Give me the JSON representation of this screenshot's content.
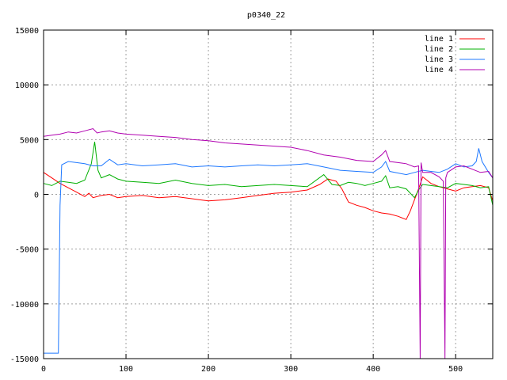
{
  "chart_data": {
    "type": "line",
    "title": "p0340_22",
    "xlabel": "",
    "ylabel": "",
    "xlim": [
      0,
      545
    ],
    "ylim": [
      -15000,
      15000
    ],
    "x_ticks": [
      0,
      100,
      200,
      300,
      400,
      500
    ],
    "y_ticks": [
      -15000,
      -10000,
      -5000,
      0,
      5000,
      10000,
      15000
    ],
    "grid": true,
    "legend_position": "top-right",
    "series": [
      {
        "name": "line 1",
        "color": "#ff0000",
        "points": [
          [
            0,
            2000
          ],
          [
            10,
            1500
          ],
          [
            20,
            1000
          ],
          [
            30,
            600
          ],
          [
            40,
            200
          ],
          [
            50,
            -200
          ],
          [
            55,
            100
          ],
          [
            60,
            -300
          ],
          [
            70,
            -100
          ],
          [
            80,
            0
          ],
          [
            90,
            -300
          ],
          [
            100,
            -200
          ],
          [
            120,
            -100
          ],
          [
            140,
            -300
          ],
          [
            160,
            -200
          ],
          [
            180,
            -400
          ],
          [
            200,
            -600
          ],
          [
            220,
            -500
          ],
          [
            240,
            -300
          ],
          [
            260,
            -100
          ],
          [
            280,
            100
          ],
          [
            300,
            200
          ],
          [
            320,
            400
          ],
          [
            335,
            900
          ],
          [
            345,
            1400
          ],
          [
            355,
            1200
          ],
          [
            362,
            500
          ],
          [
            370,
            -700
          ],
          [
            380,
            -1000
          ],
          [
            390,
            -1200
          ],
          [
            400,
            -1500
          ],
          [
            410,
            -1700
          ],
          [
            420,
            -1800
          ],
          [
            430,
            -2000
          ],
          [
            440,
            -2300
          ],
          [
            445,
            -1500
          ],
          [
            450,
            -500
          ],
          [
            455,
            500
          ],
          [
            460,
            1600
          ],
          [
            465,
            1300
          ],
          [
            470,
            1000
          ],
          [
            480,
            700
          ],
          [
            490,
            500
          ],
          [
            500,
            300
          ],
          [
            510,
            600
          ],
          [
            520,
            700
          ],
          [
            530,
            800
          ],
          [
            540,
            600
          ],
          [
            545,
            -600
          ]
        ]
      },
      {
        "name": "line 2",
        "color": "#00b000",
        "points": [
          [
            0,
            1000
          ],
          [
            10,
            800
          ],
          [
            20,
            1200
          ],
          [
            30,
            1100
          ],
          [
            40,
            1000
          ],
          [
            50,
            1300
          ],
          [
            58,
            2800
          ],
          [
            62,
            4800
          ],
          [
            66,
            2200
          ],
          [
            70,
            1500
          ],
          [
            80,
            1800
          ],
          [
            90,
            1400
          ],
          [
            100,
            1200
          ],
          [
            120,
            1100
          ],
          [
            140,
            1000
          ],
          [
            160,
            1300
          ],
          [
            180,
            1000
          ],
          [
            200,
            800
          ],
          [
            220,
            900
          ],
          [
            240,
            700
          ],
          [
            260,
            800
          ],
          [
            280,
            900
          ],
          [
            300,
            800
          ],
          [
            320,
            700
          ],
          [
            340,
            1800
          ],
          [
            350,
            900
          ],
          [
            360,
            800
          ],
          [
            370,
            1100
          ],
          [
            380,
            1000
          ],
          [
            390,
            800
          ],
          [
            400,
            1000
          ],
          [
            410,
            1200
          ],
          [
            415,
            1700
          ],
          [
            420,
            600
          ],
          [
            430,
            700
          ],
          [
            440,
            500
          ],
          [
            450,
            -300
          ],
          [
            455,
            400
          ],
          [
            460,
            900
          ],
          [
            470,
            800
          ],
          [
            480,
            700
          ],
          [
            490,
            600
          ],
          [
            500,
            1000
          ],
          [
            510,
            900
          ],
          [
            520,
            800
          ],
          [
            530,
            600
          ],
          [
            540,
            700
          ],
          [
            545,
            -1000
          ]
        ]
      },
      {
        "name": "line 3",
        "color": "#1e78ff",
        "points": [
          [
            0,
            -14500
          ],
          [
            10,
            -14500
          ],
          [
            18,
            -14500
          ],
          [
            20,
            -1000
          ],
          [
            22,
            2700
          ],
          [
            30,
            3000
          ],
          [
            40,
            2900
          ],
          [
            50,
            2800
          ],
          [
            60,
            2600
          ],
          [
            70,
            2600
          ],
          [
            80,
            3200
          ],
          [
            90,
            2700
          ],
          [
            100,
            2800
          ],
          [
            120,
            2600
          ],
          [
            140,
            2700
          ],
          [
            160,
            2800
          ],
          [
            180,
            2500
          ],
          [
            200,
            2600
          ],
          [
            220,
            2500
          ],
          [
            240,
            2600
          ],
          [
            260,
            2700
          ],
          [
            280,
            2600
          ],
          [
            300,
            2700
          ],
          [
            320,
            2800
          ],
          [
            340,
            2500
          ],
          [
            360,
            2200
          ],
          [
            380,
            2100
          ],
          [
            400,
            2000
          ],
          [
            410,
            2500
          ],
          [
            415,
            3000
          ],
          [
            420,
            2100
          ],
          [
            440,
            1800
          ],
          [
            450,
            2000
          ],
          [
            460,
            2200
          ],
          [
            470,
            2100
          ],
          [
            480,
            2000
          ],
          [
            490,
            2300
          ],
          [
            500,
            2800
          ],
          [
            510,
            2500
          ],
          [
            520,
            2600
          ],
          [
            525,
            3000
          ],
          [
            528,
            4200
          ],
          [
            532,
            3000
          ],
          [
            540,
            2000
          ],
          [
            545,
            1500
          ]
        ]
      },
      {
        "name": "line 4",
        "color": "#b000b0",
        "points": [
          [
            0,
            5300
          ],
          [
            10,
            5400
          ],
          [
            20,
            5500
          ],
          [
            30,
            5700
          ],
          [
            40,
            5600
          ],
          [
            50,
            5800
          ],
          [
            60,
            6000
          ],
          [
            65,
            5600
          ],
          [
            70,
            5700
          ],
          [
            80,
            5800
          ],
          [
            90,
            5600
          ],
          [
            100,
            5500
          ],
          [
            120,
            5400
          ],
          [
            140,
            5300
          ],
          [
            160,
            5200
          ],
          [
            180,
            5000
          ],
          [
            200,
            4900
          ],
          [
            220,
            4700
          ],
          [
            240,
            4600
          ],
          [
            260,
            4500
          ],
          [
            280,
            4400
          ],
          [
            300,
            4300
          ],
          [
            320,
            4000
          ],
          [
            340,
            3600
          ],
          [
            360,
            3400
          ],
          [
            380,
            3100
          ],
          [
            400,
            3000
          ],
          [
            410,
            3600
          ],
          [
            415,
            4000
          ],
          [
            420,
            3000
          ],
          [
            440,
            2800
          ],
          [
            450,
            2500
          ],
          [
            455,
            2600
          ],
          [
            457,
            -15000
          ],
          [
            458,
            2900
          ],
          [
            460,
            2000
          ],
          [
            470,
            2000
          ],
          [
            480,
            1600
          ],
          [
            485,
            1200
          ],
          [
            487,
            -15000
          ],
          [
            488,
            1500
          ],
          [
            490,
            2000
          ],
          [
            500,
            2500
          ],
          [
            510,
            2600
          ],
          [
            520,
            2300
          ],
          [
            530,
            2000
          ],
          [
            540,
            2100
          ],
          [
            545,
            1500
          ]
        ]
      }
    ]
  }
}
